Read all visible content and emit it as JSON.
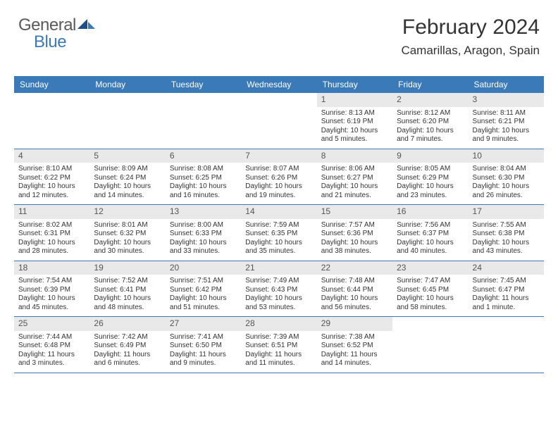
{
  "logo": {
    "wordA": "General",
    "wordB": "Blue"
  },
  "header": {
    "month_title": "February 2024",
    "location": "Camarillas, Aragon, Spain"
  },
  "colors": {
    "brand_blue": "#3a7ab8",
    "logo_gray": "#5a5a5a",
    "text": "#333333",
    "daynum_bg": "#e9e9e9",
    "bg": "#ffffff"
  },
  "day_headers": [
    "Sunday",
    "Monday",
    "Tuesday",
    "Wednesday",
    "Thursday",
    "Friday",
    "Saturday"
  ],
  "weeks": [
    [
      null,
      null,
      null,
      null,
      {
        "n": "1",
        "sr": "Sunrise: 8:13 AM",
        "ss": "Sunset: 6:19 PM",
        "dl1": "Daylight: 10 hours",
        "dl2": "and 5 minutes."
      },
      {
        "n": "2",
        "sr": "Sunrise: 8:12 AM",
        "ss": "Sunset: 6:20 PM",
        "dl1": "Daylight: 10 hours",
        "dl2": "and 7 minutes."
      },
      {
        "n": "3",
        "sr": "Sunrise: 8:11 AM",
        "ss": "Sunset: 6:21 PM",
        "dl1": "Daylight: 10 hours",
        "dl2": "and 9 minutes."
      }
    ],
    [
      {
        "n": "4",
        "sr": "Sunrise: 8:10 AM",
        "ss": "Sunset: 6:22 PM",
        "dl1": "Daylight: 10 hours",
        "dl2": "and 12 minutes."
      },
      {
        "n": "5",
        "sr": "Sunrise: 8:09 AM",
        "ss": "Sunset: 6:24 PM",
        "dl1": "Daylight: 10 hours",
        "dl2": "and 14 minutes."
      },
      {
        "n": "6",
        "sr": "Sunrise: 8:08 AM",
        "ss": "Sunset: 6:25 PM",
        "dl1": "Daylight: 10 hours",
        "dl2": "and 16 minutes."
      },
      {
        "n": "7",
        "sr": "Sunrise: 8:07 AM",
        "ss": "Sunset: 6:26 PM",
        "dl1": "Daylight: 10 hours",
        "dl2": "and 19 minutes."
      },
      {
        "n": "8",
        "sr": "Sunrise: 8:06 AM",
        "ss": "Sunset: 6:27 PM",
        "dl1": "Daylight: 10 hours",
        "dl2": "and 21 minutes."
      },
      {
        "n": "9",
        "sr": "Sunrise: 8:05 AM",
        "ss": "Sunset: 6:29 PM",
        "dl1": "Daylight: 10 hours",
        "dl2": "and 23 minutes."
      },
      {
        "n": "10",
        "sr": "Sunrise: 8:04 AM",
        "ss": "Sunset: 6:30 PM",
        "dl1": "Daylight: 10 hours",
        "dl2": "and 26 minutes."
      }
    ],
    [
      {
        "n": "11",
        "sr": "Sunrise: 8:02 AM",
        "ss": "Sunset: 6:31 PM",
        "dl1": "Daylight: 10 hours",
        "dl2": "and 28 minutes."
      },
      {
        "n": "12",
        "sr": "Sunrise: 8:01 AM",
        "ss": "Sunset: 6:32 PM",
        "dl1": "Daylight: 10 hours",
        "dl2": "and 30 minutes."
      },
      {
        "n": "13",
        "sr": "Sunrise: 8:00 AM",
        "ss": "Sunset: 6:33 PM",
        "dl1": "Daylight: 10 hours",
        "dl2": "and 33 minutes."
      },
      {
        "n": "14",
        "sr": "Sunrise: 7:59 AM",
        "ss": "Sunset: 6:35 PM",
        "dl1": "Daylight: 10 hours",
        "dl2": "and 35 minutes."
      },
      {
        "n": "15",
        "sr": "Sunrise: 7:57 AM",
        "ss": "Sunset: 6:36 PM",
        "dl1": "Daylight: 10 hours",
        "dl2": "and 38 minutes."
      },
      {
        "n": "16",
        "sr": "Sunrise: 7:56 AM",
        "ss": "Sunset: 6:37 PM",
        "dl1": "Daylight: 10 hours",
        "dl2": "and 40 minutes."
      },
      {
        "n": "17",
        "sr": "Sunrise: 7:55 AM",
        "ss": "Sunset: 6:38 PM",
        "dl1": "Daylight: 10 hours",
        "dl2": "and 43 minutes."
      }
    ],
    [
      {
        "n": "18",
        "sr": "Sunrise: 7:54 AM",
        "ss": "Sunset: 6:39 PM",
        "dl1": "Daylight: 10 hours",
        "dl2": "and 45 minutes."
      },
      {
        "n": "19",
        "sr": "Sunrise: 7:52 AM",
        "ss": "Sunset: 6:41 PM",
        "dl1": "Daylight: 10 hours",
        "dl2": "and 48 minutes."
      },
      {
        "n": "20",
        "sr": "Sunrise: 7:51 AM",
        "ss": "Sunset: 6:42 PM",
        "dl1": "Daylight: 10 hours",
        "dl2": "and 51 minutes."
      },
      {
        "n": "21",
        "sr": "Sunrise: 7:49 AM",
        "ss": "Sunset: 6:43 PM",
        "dl1": "Daylight: 10 hours",
        "dl2": "and 53 minutes."
      },
      {
        "n": "22",
        "sr": "Sunrise: 7:48 AM",
        "ss": "Sunset: 6:44 PM",
        "dl1": "Daylight: 10 hours",
        "dl2": "and 56 minutes."
      },
      {
        "n": "23",
        "sr": "Sunrise: 7:47 AM",
        "ss": "Sunset: 6:45 PM",
        "dl1": "Daylight: 10 hours",
        "dl2": "and 58 minutes."
      },
      {
        "n": "24",
        "sr": "Sunrise: 7:45 AM",
        "ss": "Sunset: 6:47 PM",
        "dl1": "Daylight: 11 hours",
        "dl2": "and 1 minute."
      }
    ],
    [
      {
        "n": "25",
        "sr": "Sunrise: 7:44 AM",
        "ss": "Sunset: 6:48 PM",
        "dl1": "Daylight: 11 hours",
        "dl2": "and 3 minutes."
      },
      {
        "n": "26",
        "sr": "Sunrise: 7:42 AM",
        "ss": "Sunset: 6:49 PM",
        "dl1": "Daylight: 11 hours",
        "dl2": "and 6 minutes."
      },
      {
        "n": "27",
        "sr": "Sunrise: 7:41 AM",
        "ss": "Sunset: 6:50 PM",
        "dl1": "Daylight: 11 hours",
        "dl2": "and 9 minutes."
      },
      {
        "n": "28",
        "sr": "Sunrise: 7:39 AM",
        "ss": "Sunset: 6:51 PM",
        "dl1": "Daylight: 11 hours",
        "dl2": "and 11 minutes."
      },
      {
        "n": "29",
        "sr": "Sunrise: 7:38 AM",
        "ss": "Sunset: 6:52 PM",
        "dl1": "Daylight: 11 hours",
        "dl2": "and 14 minutes."
      },
      null,
      null
    ]
  ]
}
